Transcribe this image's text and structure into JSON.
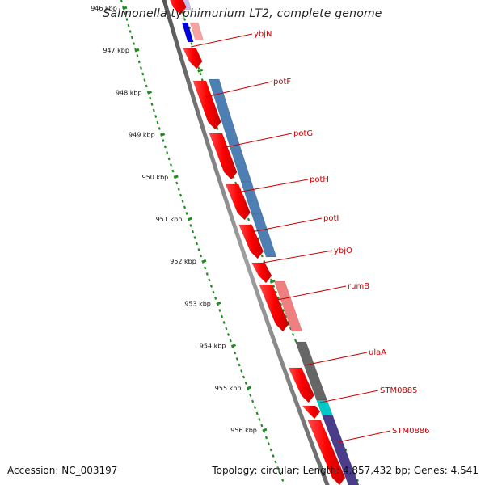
{
  "title": "Salmonella typhimurium LT2, complete genome",
  "footer": {
    "accession": "Accession: NC_003197",
    "summary": "Topology: circular; Length: 4,857,432 bp; Genes: 4,541"
  },
  "colors": {
    "forward_cds": "#ff0000",
    "backbone": "#777777",
    "tick": "#228b22",
    "label": "#cc0000"
  },
  "ticks": [
    "946 kbp",
    "947 kbp",
    "948 kbp",
    "949 kbp",
    "950 kbp",
    "951 kbp",
    "952 kbp",
    "953 kbp",
    "954 kbp",
    "955 kbp",
    "956 kbp"
  ],
  "genes": [
    {
      "name": "ybjN",
      "feature_color": "#f5a3a3"
    },
    {
      "name": "potF",
      "feature_color": "#4d7fb3"
    },
    {
      "name": "potG",
      "feature_color": "#4d7fb3"
    },
    {
      "name": "potH",
      "feature_color": "#4d7fb3"
    },
    {
      "name": "potI",
      "feature_color": "#4d7fb3"
    },
    {
      "name": "ybjO",
      "feature_color": ""
    },
    {
      "name": "rumB",
      "feature_color": "#f08080"
    },
    {
      "name": "ulaA",
      "feature_color": "#666666"
    },
    {
      "name": "STM0885",
      "feature_color": "#00c8c8"
    },
    {
      "name": "STM0886",
      "feature_color": "#4b3d8a"
    }
  ]
}
